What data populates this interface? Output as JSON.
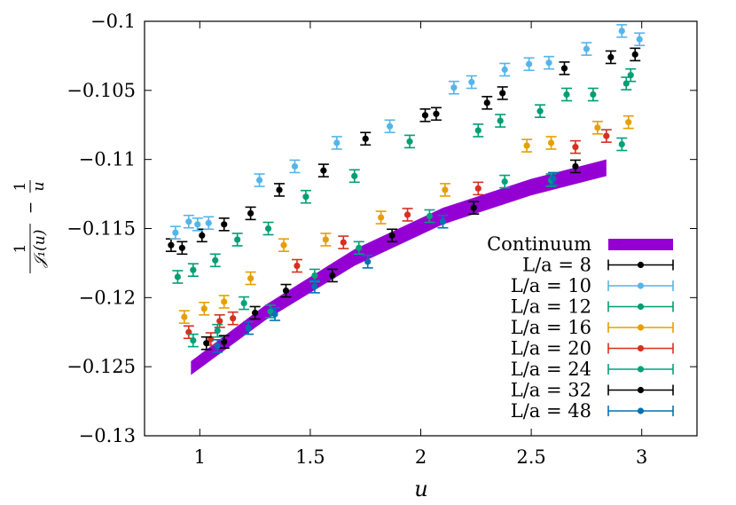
{
  "chart_data": {
    "type": "scatter",
    "xlabel": "u",
    "ylabel": {
      "frac1_numerator": "1",
      "frac1_denominator": "𝒥₁(u)",
      "operator": "−",
      "frac2_numerator": "1",
      "frac2_denominator": "u"
    },
    "xlim": [
      0.75,
      3.25
    ],
    "ylim": [
      -0.13,
      -0.1
    ],
    "x_ticks": [
      1,
      1.5,
      2,
      2.5,
      3
    ],
    "x_tick_labels": [
      "1",
      "1.5",
      "2",
      "2.5",
      "3"
    ],
    "y_ticks": [
      -0.13,
      -0.125,
      -0.12,
      -0.115,
      -0.11,
      -0.105,
      -0.1
    ],
    "y_tick_labels": [
      "−0.13",
      "−0.125",
      "−0.12",
      "−0.115",
      "−0.11",
      "−0.105",
      "−0.1"
    ],
    "legend_placement": "bottom-right",
    "continuum": {
      "name": "Continuum",
      "color": "#9400D3",
      "upper": [
        [
          0.96,
          -0.1246
        ],
        [
          1.3,
          -0.1205
        ],
        [
          1.7,
          -0.1165
        ],
        [
          2.1,
          -0.1135
        ],
        [
          2.5,
          -0.1114
        ],
        [
          2.84,
          -0.11
        ]
      ],
      "lower": [
        [
          0.96,
          -0.1256
        ],
        [
          1.3,
          -0.1216
        ],
        [
          1.7,
          -0.1177
        ],
        [
          2.1,
          -0.1147
        ],
        [
          2.5,
          -0.1126
        ],
        [
          2.84,
          -0.1112
        ]
      ]
    },
    "series": [
      {
        "name": "L/a =   8",
        "L": "8",
        "color": "#000000",
        "points": [
          [
            0.87,
            -0.1162
          ],
          [
            0.92,
            -0.1164
          ],
          [
            1.01,
            -0.1155
          ],
          [
            1.11,
            -0.1147
          ],
          [
            1.23,
            -0.1139
          ],
          [
            1.36,
            -0.1122
          ],
          [
            1.56,
            -0.1108
          ],
          [
            1.75,
            -0.1085
          ],
          [
            2.02,
            -0.1068
          ],
          [
            2.07,
            -0.1067
          ],
          [
            2.3,
            -0.1059
          ],
          [
            2.37,
            -0.1052
          ],
          [
            2.65,
            -0.1034
          ],
          [
            2.86,
            -0.1026
          ],
          [
            2.97,
            -0.1024
          ]
        ]
      },
      {
        "name": "L/a = 10",
        "L": "10",
        "color": "#56B4E9",
        "points": [
          [
            0.89,
            -0.1153
          ],
          [
            0.95,
            -0.1145
          ],
          [
            0.99,
            -0.1147
          ],
          [
            1.04,
            -0.1146
          ],
          [
            1.27,
            -0.1115
          ],
          [
            1.43,
            -0.1105
          ],
          [
            1.62,
            -0.1088
          ],
          [
            1.86,
            -0.1076
          ],
          [
            2.15,
            -0.1048
          ],
          [
            2.23,
            -0.1044
          ],
          [
            2.38,
            -0.1035
          ],
          [
            2.49,
            -0.1031
          ],
          [
            2.58,
            -0.103
          ],
          [
            2.75,
            -0.102
          ],
          [
            2.91,
            -0.1007
          ],
          [
            2.99,
            -0.1013
          ]
        ]
      },
      {
        "name": "L/a = 12",
        "L": "12",
        "color": "#009E73",
        "points": [
          [
            0.9,
            -0.1185
          ],
          [
            0.97,
            -0.118
          ],
          [
            1.07,
            -0.1173
          ],
          [
            1.17,
            -0.1158
          ],
          [
            1.31,
            -0.115
          ],
          [
            1.48,
            -0.1127
          ],
          [
            1.7,
            -0.1112
          ],
          [
            1.95,
            -0.1087
          ],
          [
            2.26,
            -0.1079
          ],
          [
            2.36,
            -0.1072
          ],
          [
            2.54,
            -0.1065
          ],
          [
            2.66,
            -0.1053
          ],
          [
            2.78,
            -0.1053
          ],
          [
            2.93,
            -0.1045
          ],
          [
            2.95,
            -0.1039
          ]
        ]
      },
      {
        "name": "L/a = 16",
        "L": "16",
        "color": "#E69F00",
        "points": [
          [
            0.93,
            -0.1214
          ],
          [
            1.02,
            -0.1208
          ],
          [
            1.11,
            -0.1203
          ],
          [
            1.23,
            -0.1186
          ],
          [
            1.38,
            -0.1162
          ],
          [
            1.57,
            -0.1158
          ],
          [
            1.82,
            -0.1142
          ],
          [
            2.11,
            -0.1122
          ],
          [
            2.48,
            -0.109
          ],
          [
            2.59,
            -0.1088
          ],
          [
            2.8,
            -0.1077
          ],
          [
            2.94,
            -0.1073
          ]
        ]
      },
      {
        "name": "L/a = 20",
        "L": "20",
        "color": "#D7301F",
        "points": [
          [
            0.95,
            -0.1225
          ],
          [
            1.05,
            -0.123
          ],
          [
            1.09,
            -0.1217
          ],
          [
            1.15,
            -0.1215
          ],
          [
            1.44,
            -0.1177
          ],
          [
            1.65,
            -0.116
          ],
          [
            1.94,
            -0.114
          ],
          [
            2.26,
            -0.1121
          ],
          [
            2.7,
            -0.1091
          ],
          [
            2.84,
            -0.1083
          ]
        ]
      },
      {
        "name": "L/a = 24",
        "L": "24",
        "color": "#00A27A",
        "points": [
          [
            0.97,
            -0.1231
          ],
          [
            1.08,
            -0.1224
          ],
          [
            1.2,
            -0.1204
          ],
          [
            1.32,
            -0.121
          ],
          [
            1.52,
            -0.1184
          ],
          [
            1.72,
            -0.1164
          ],
          [
            2.04,
            -0.1141
          ],
          [
            2.38,
            -0.1116
          ],
          [
            2.59,
            -0.1115
          ],
          [
            2.91,
            -0.1089
          ]
        ]
      },
      {
        "name": "L/a = 32",
        "L": "32",
        "color": "#000000",
        "points": [
          [
            1.03,
            -0.1233
          ],
          [
            1.11,
            -0.1232
          ],
          [
            1.25,
            -0.1211
          ],
          [
            1.39,
            -0.1195
          ],
          [
            1.6,
            -0.1184
          ],
          [
            1.87,
            -0.1155
          ],
          [
            2.24,
            -0.1135
          ],
          [
            2.7,
            -0.1105
          ]
        ]
      },
      {
        "name": "L/a = 48",
        "L": "48",
        "color": "#0072B2",
        "points": [
          [
            1.08,
            -0.1235
          ],
          [
            1.22,
            -0.1222
          ],
          [
            1.34,
            -0.1212
          ],
          [
            1.52,
            -0.1192
          ],
          [
            1.76,
            -0.1174
          ],
          [
            2.1,
            -0.1145
          ],
          [
            2.6,
            -0.1114
          ]
        ]
      }
    ]
  }
}
